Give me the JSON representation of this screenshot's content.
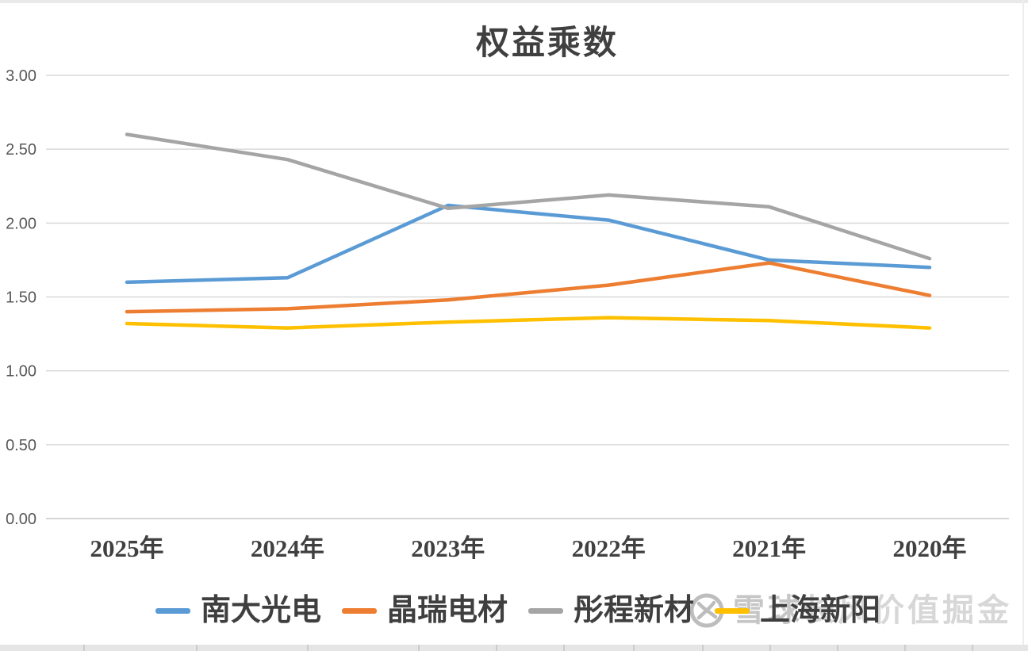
{
  "chart_data": {
    "type": "line",
    "title": "权益乘数",
    "categories": [
      "2025年",
      "2024年",
      "2023年",
      "2022年",
      "2021年",
      "2020年"
    ],
    "series": [
      {
        "name": "南大光电",
        "color": "#5B9BD5",
        "values": [
          1.6,
          1.63,
          2.12,
          2.02,
          1.75,
          1.7
        ]
      },
      {
        "name": "晶瑞电材",
        "color": "#ED7D31",
        "values": [
          1.4,
          1.42,
          1.48,
          1.58,
          1.73,
          1.51
        ]
      },
      {
        "name": "彤程新材",
        "color": "#A5A5A5",
        "values": [
          2.6,
          2.43,
          2.1,
          2.19,
          2.11,
          1.76
        ]
      },
      {
        "name": "上海新阳",
        "color": "#FFC000",
        "values": [
          1.32,
          1.29,
          1.33,
          1.36,
          1.34,
          1.29
        ]
      }
    ],
    "ylim": [
      0,
      3
    ],
    "ytick_step": 0.5,
    "ytick_labels": [
      "0.00",
      "0.50",
      "1.00",
      "1.50",
      "2.00",
      "2.50",
      "3.00"
    ],
    "grid": "horizontal",
    "legend_position": "bottom"
  },
  "watermark": {
    "logo": "xueqiu-snowball-logo",
    "brand": "雪球",
    "name": "长风价值掘金"
  },
  "colors": {
    "grid": "#d9d9d9",
    "axis_line": "#c9c9c9",
    "y_label_text": "#595959",
    "x_label_text": "#404040",
    "title_text": "#404040"
  }
}
